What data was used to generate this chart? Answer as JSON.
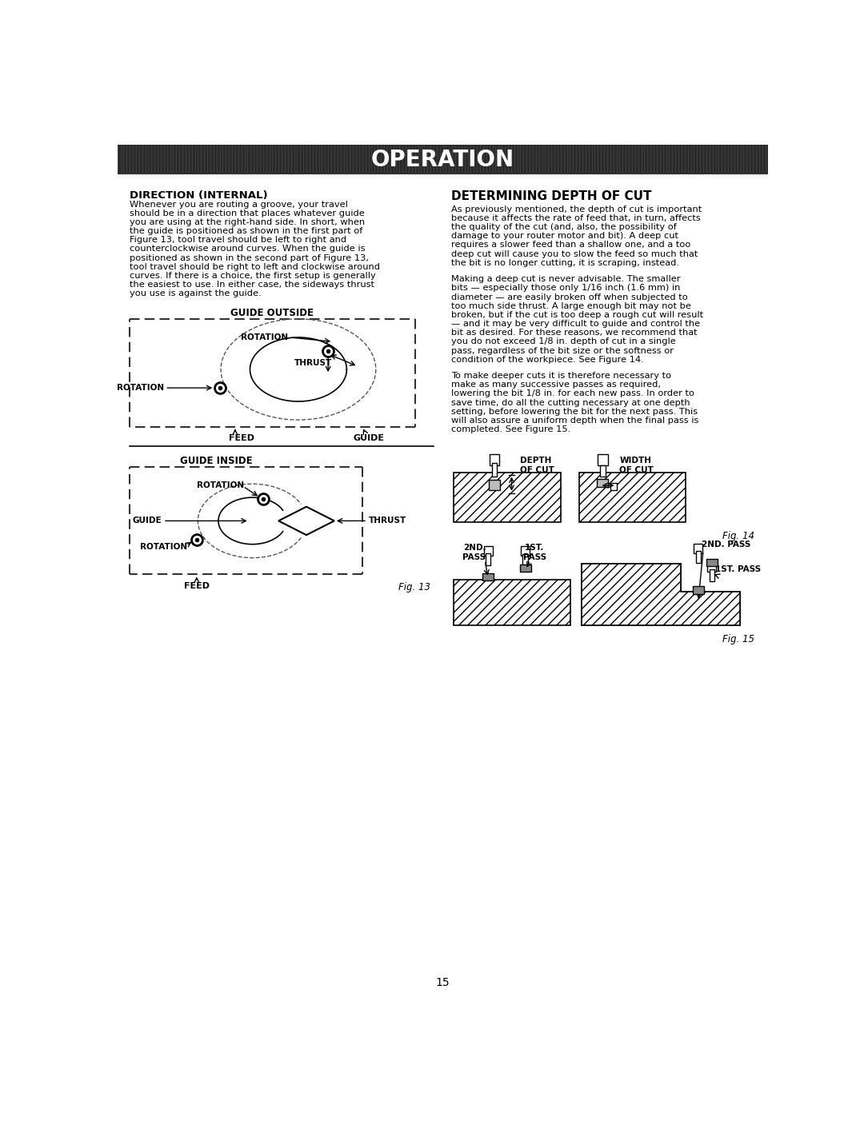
{
  "title": "OPERATION",
  "title_bg": "#2a2a2a",
  "title_color": "#ffffff",
  "page_bg": "#ffffff",
  "page_number": "15",
  "left_section_title": "DIRECTION (INTERNAL)",
  "fig13_label": "Fig. 13",
  "guide_outside_label": "GUIDE OUTSIDE",
  "guide_inside_label": "GUIDE INSIDE",
  "right_section_title": "DETERMINING DEPTH OF CUT",
  "fig14_label": "Fig. 14",
  "fig15_label": "Fig. 15",
  "depth_of_cut_label": "DEPTH\nOF CUT",
  "width_of_cut_label": "WIDTH\nOF CUT",
  "pass_2nd_label": "2ND.\nPASS",
  "pass_1st_label": "1ST.\nPASS",
  "pass_2nd_label2": "2ND. PASS",
  "pass_1st_label2": "1ST. PASS",
  "left_body_lines": [
    "Whenever you are routing a groove, your travel",
    "should be in a direction that places whatever guide",
    "you are using at the right-hand side. In short, when",
    "the guide is positioned as shown in the first part of",
    "Figure 13, tool travel should be left to right and",
    "counterclockwise around curves. When the guide is",
    "positioned as shown in the second part of Figure 13,",
    "tool travel should be right to left and clockwise around",
    "curves. If there is a choice, the first setup is generally",
    "the easiest to use. In either case, the sideways thrust",
    "you use is against the guide."
  ],
  "right_lines1": [
    "As previously mentioned, the depth of cut is important",
    "because it affects the rate of feed that, in turn, affects",
    "the quality of the cut (and, also, the possibility of",
    "damage to your router motor and bit). A deep cut",
    "requires a slower feed than a shallow one, and a too",
    "deep cut will cause you to slow the feed so much that",
    "the bit is no longer cutting, it is scraping, instead."
  ],
  "right_lines2": [
    "Making a deep cut is never advisable. The smaller",
    "bits — especially those only 1/16 inch (1.6 mm) in",
    "diameter — are easily broken off when subjected to",
    "too much side thrust. A large enough bit may not be",
    "broken, but if the cut is too deep a rough cut will result",
    "— and it may be very difficult to guide and control the",
    "bit as desired. For these reasons, we recommend that",
    "you do not exceed 1/8 in. depth of cut in a single",
    "pass, regardless of the bit size or the softness or",
    "condition of the workpiece. See Figure 14."
  ],
  "right_lines3": [
    "To make deeper cuts it is therefore necessary to",
    "make as many successive passes as required,",
    "lowering the bit 1/8 in. for each new pass. In order to",
    "save time, do all the cutting necessary at one depth",
    "setting, before lowering the bit for the next pass. This",
    "will also assure a uniform depth when the final pass is",
    "completed. See Figure 15."
  ]
}
